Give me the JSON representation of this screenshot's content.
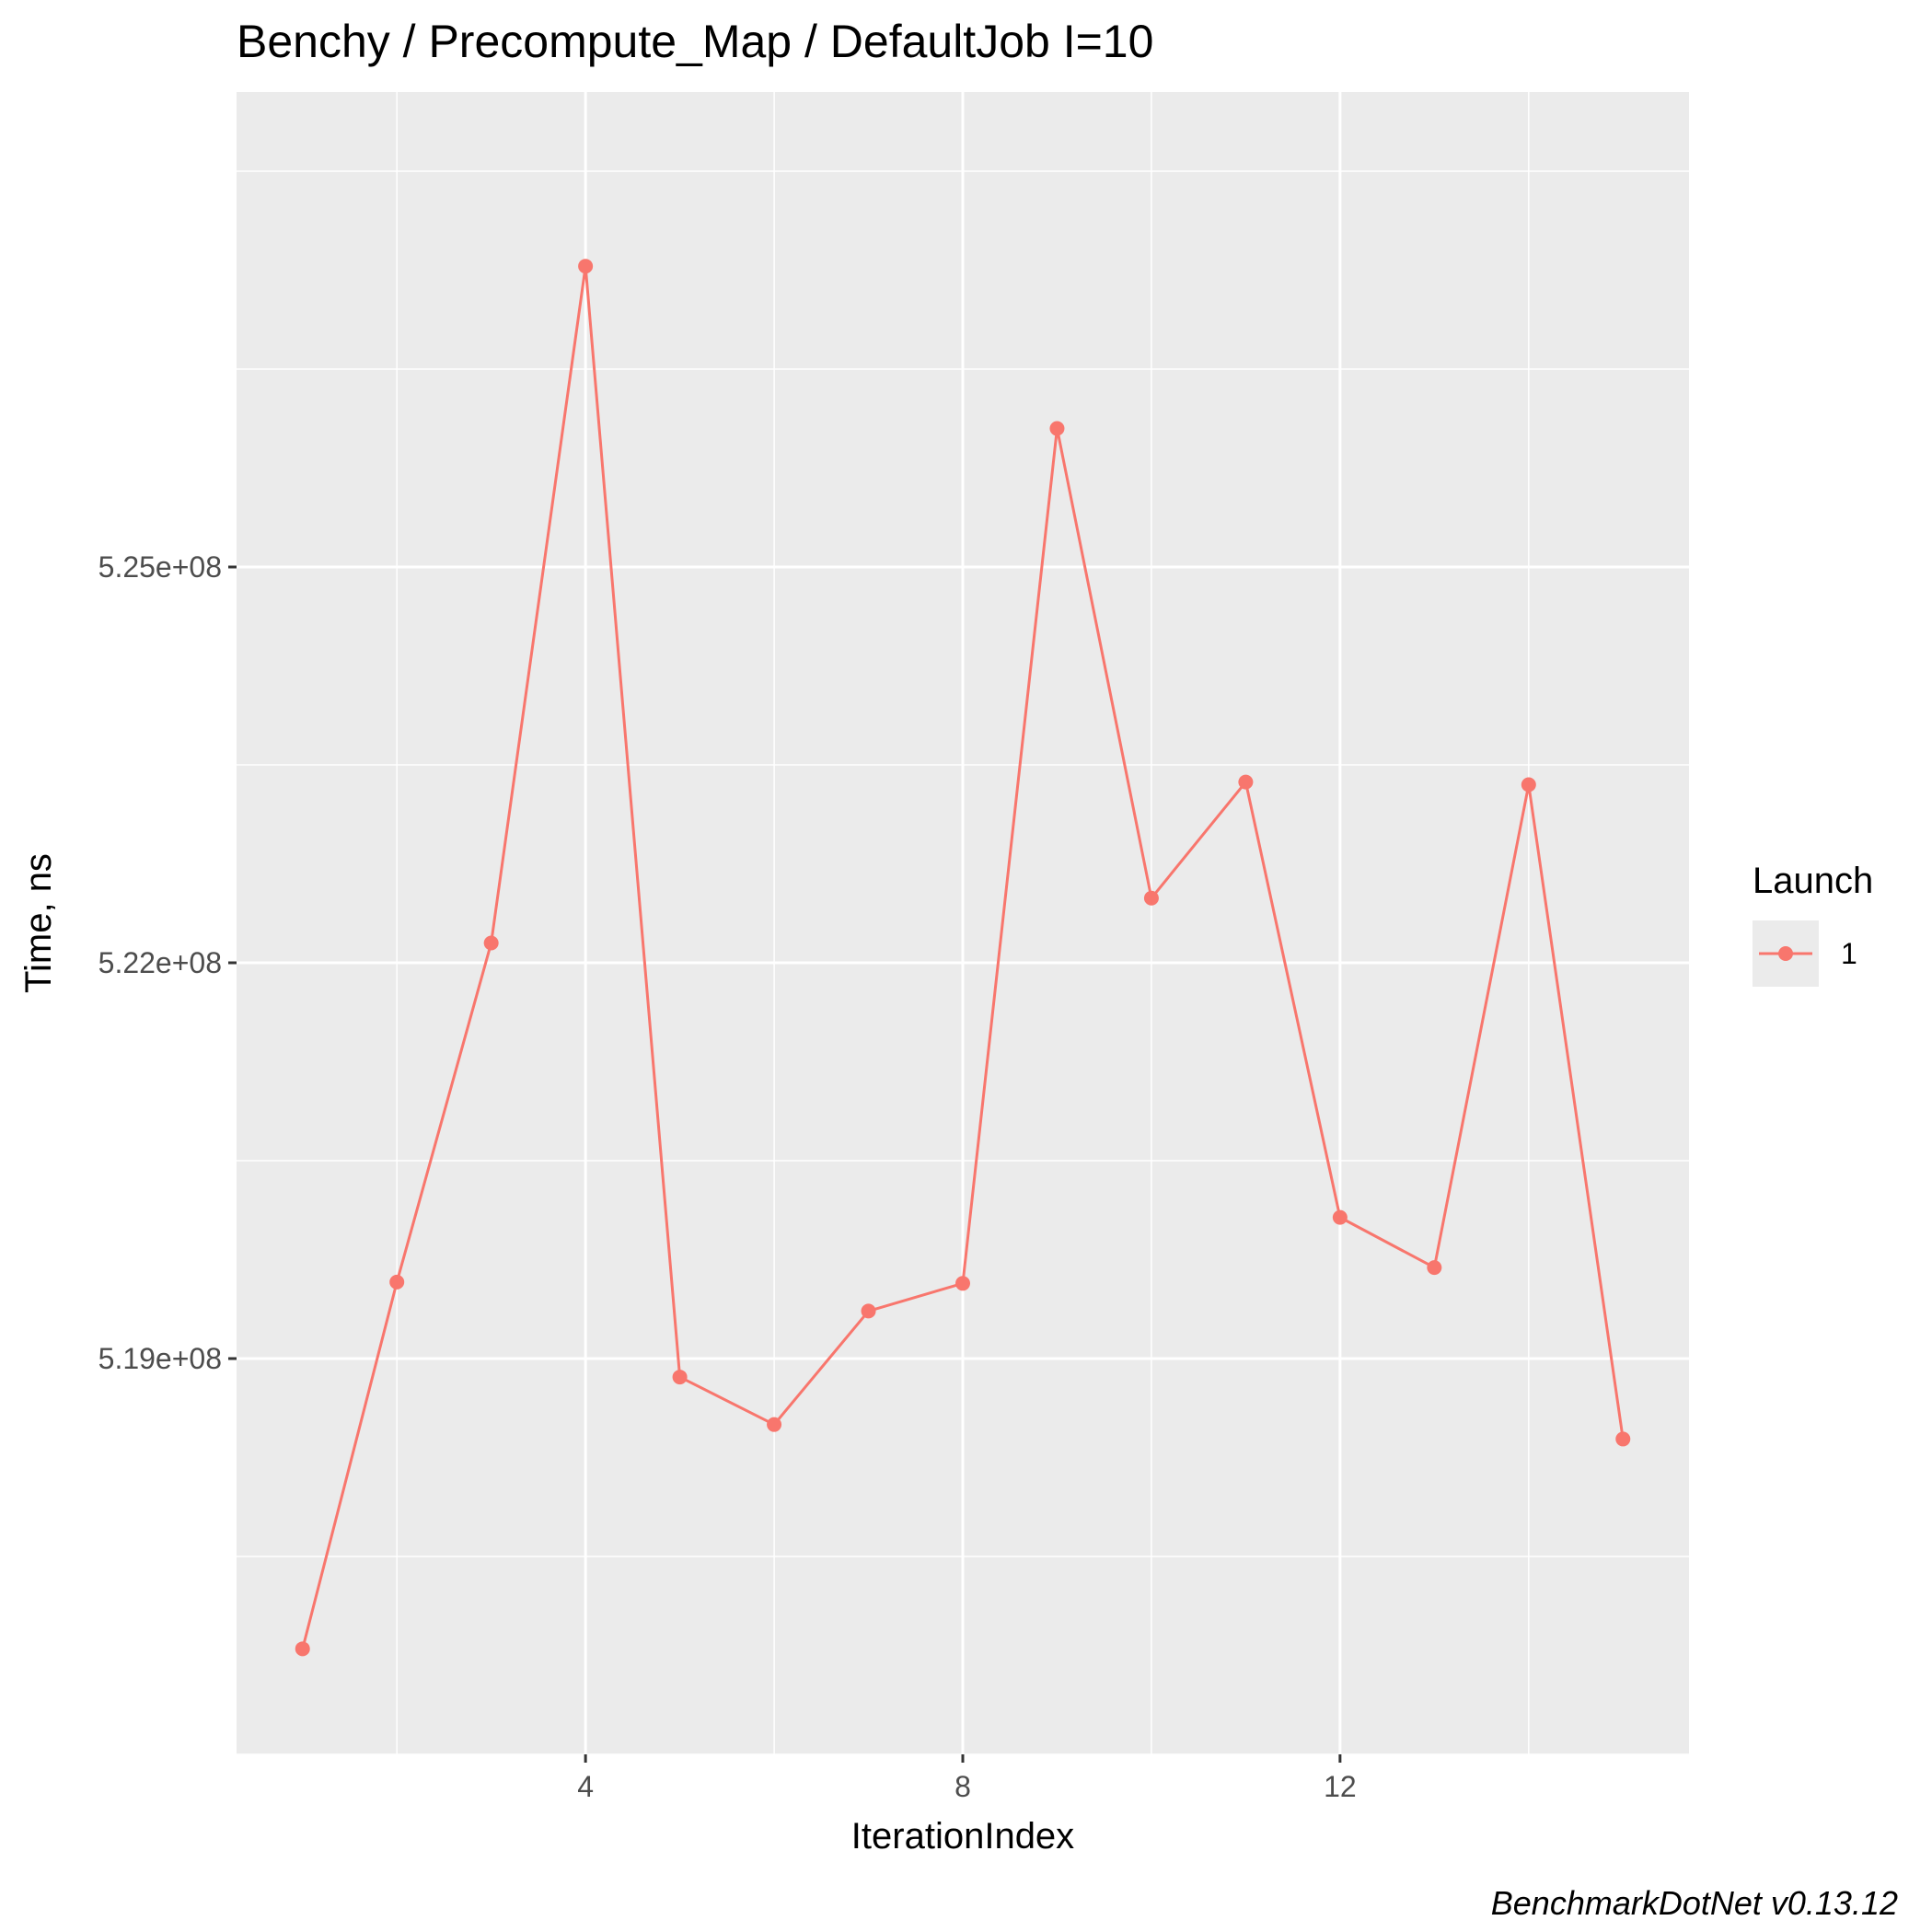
{
  "chart_data": {
    "type": "line",
    "title": "Benchy / Precompute_Map / DefaultJob I=10",
    "xlabel": "IterationIndex",
    "ylabel": "Time, ns",
    "caption": "BenchmarkDotNet v0.13.12",
    "x_ticks": [
      4,
      8,
      12
    ],
    "x_tick_labels": [
      "4",
      "8",
      "12"
    ],
    "y_ticks": [
      519000000,
      522000000,
      525000000
    ],
    "y_tick_labels": [
      "5.19e+08",
      "5.22e+08",
      "5.25e+08"
    ],
    "xlim": [
      0.3,
      15.7
    ],
    "ylim": [
      516000000,
      528600000
    ],
    "grid": true,
    "legend": {
      "title": "Launch",
      "position": "right"
    },
    "series": [
      {
        "name": "1",
        "color": "#F8766D",
        "x": [
          1,
          2,
          3,
          4,
          5,
          6,
          7,
          8,
          9,
          10,
          11,
          12,
          13,
          14,
          15
        ],
        "values": [
          516800000,
          519580000,
          522150000,
          527280000,
          518860000,
          518500000,
          519360000,
          519570000,
          526050000,
          522490000,
          523370000,
          520070000,
          519690000,
          523350000,
          518390000
        ]
      }
    ]
  }
}
